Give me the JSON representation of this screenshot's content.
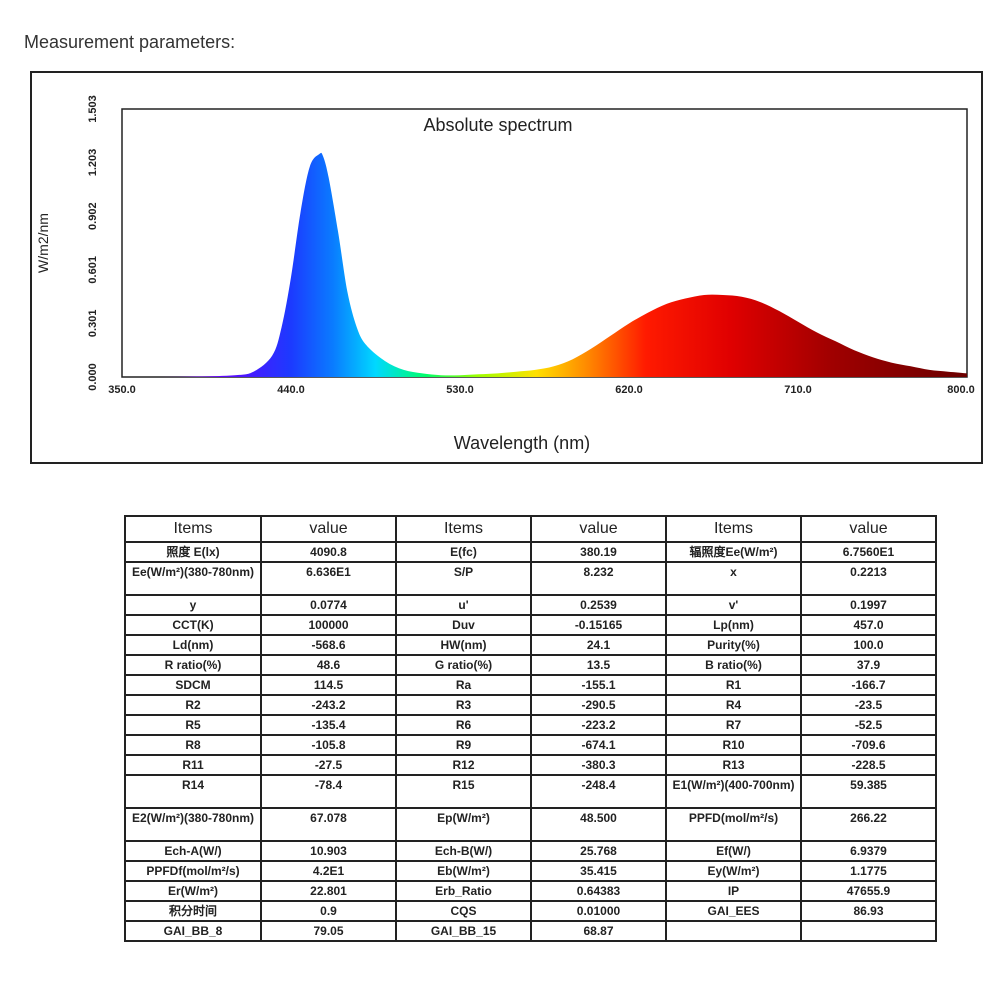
{
  "heading": "Measurement parameters:",
  "chart_data": {
    "type": "area",
    "title": "Absolute spectrum",
    "xlabel": "Wavelength (nm)",
    "ylabel": "W/m2/nm",
    "xlim": [
      350.0,
      800.0
    ],
    "ylim": [
      0.0,
      1.503
    ],
    "xticks": [
      "350.0",
      "440.0",
      "530.0",
      "620.0",
      "710.0",
      "800.0"
    ],
    "yticks": [
      "0.000",
      "0.301",
      "0.601",
      "0.902",
      "1.203",
      "1.503"
    ],
    "grid": false,
    "legend": "none",
    "x": [
      350,
      370,
      390,
      410,
      420,
      430,
      435,
      440,
      445,
      450,
      455,
      457,
      460,
      465,
      470,
      475,
      480,
      490,
      500,
      510,
      520,
      530,
      540,
      550,
      560,
      570,
      580,
      590,
      600,
      610,
      620,
      630,
      640,
      650,
      660,
      670,
      680,
      690,
      700,
      710,
      720,
      730,
      740,
      750,
      760,
      770,
      780,
      790,
      800
    ],
    "y": [
      0.0,
      0.0,
      0.003,
      0.01,
      0.03,
      0.12,
      0.28,
      0.56,
      0.92,
      1.18,
      1.25,
      1.24,
      1.12,
      0.82,
      0.48,
      0.28,
      0.18,
      0.09,
      0.04,
      0.02,
      0.01,
      0.01,
      0.015,
      0.02,
      0.03,
      0.04,
      0.06,
      0.1,
      0.16,
      0.23,
      0.3,
      0.36,
      0.41,
      0.44,
      0.46,
      0.46,
      0.45,
      0.42,
      0.37,
      0.31,
      0.25,
      0.2,
      0.15,
      0.11,
      0.08,
      0.06,
      0.04,
      0.03,
      0.02
    ]
  },
  "table": {
    "rows": [
      [
        {
          "t": "Items"
        },
        {
          "t": "value"
        },
        {
          "t": "Items"
        },
        {
          "t": "value"
        },
        {
          "t": "Items"
        },
        {
          "t": "value"
        }
      ],
      [
        {
          "t": "照度 E(lx)"
        },
        {
          "t": "4090.8"
        },
        {
          "t": "E(fc)"
        },
        {
          "t": "380.19"
        },
        {
          "t": "辐照度Ee(W/m²)"
        },
        {
          "t": "6.7560E1"
        }
      ],
      [
        {
          "t": "Ee(W/m²)(380-780nm)"
        },
        {
          "t": "6.636E1"
        },
        {
          "t": "S/P"
        },
        {
          "t": "8.232"
        },
        {
          "t": "x"
        },
        {
          "t": "0.2213"
        }
      ],
      [
        {
          "t": "y"
        },
        {
          "t": "0.0774"
        },
        {
          "t": "u'"
        },
        {
          "t": "0.2539"
        },
        {
          "t": "v'"
        },
        {
          "t": "0.1997"
        }
      ],
      [
        {
          "t": "CCT(K)"
        },
        {
          "t": "100000"
        },
        {
          "t": "Duv"
        },
        {
          "t": "-0.15165"
        },
        {
          "t": "Lp(nm)"
        },
        {
          "t": "457.0"
        }
      ],
      [
        {
          "t": "Ld(nm)"
        },
        {
          "t": "-568.6"
        },
        {
          "t": "HW(nm)"
        },
        {
          "t": "24.1"
        },
        {
          "t": "Purity(%)"
        },
        {
          "t": "100.0"
        }
      ],
      [
        {
          "t": "R ratio(%)"
        },
        {
          "t": "48.6"
        },
        {
          "t": "G ratio(%)"
        },
        {
          "t": "13.5"
        },
        {
          "t": "B ratio(%)"
        },
        {
          "t": "37.9"
        }
      ],
      [
        {
          "t": "SDCM"
        },
        {
          "t": "114.5"
        },
        {
          "t": "Ra"
        },
        {
          "t": "-155.1"
        },
        {
          "t": "R1"
        },
        {
          "t": "-166.7"
        }
      ],
      [
        {
          "t": "R2"
        },
        {
          "t": "-243.2"
        },
        {
          "t": "R3"
        },
        {
          "t": "-290.5"
        },
        {
          "t": "R4"
        },
        {
          "t": "-23.5"
        }
      ],
      [
        {
          "t": "R5"
        },
        {
          "t": "-135.4"
        },
        {
          "t": "R6"
        },
        {
          "t": "-223.2"
        },
        {
          "t": "R7"
        },
        {
          "t": "-52.5"
        }
      ],
      [
        {
          "t": "R8"
        },
        {
          "t": "-105.8"
        },
        {
          "t": "R9"
        },
        {
          "t": "-674.1"
        },
        {
          "t": "R10"
        },
        {
          "t": "-709.6"
        }
      ],
      [
        {
          "t": "R11"
        },
        {
          "t": "-27.5"
        },
        {
          "t": "R12"
        },
        {
          "t": "-380.3"
        },
        {
          "t": "R13"
        },
        {
          "t": "-228.5"
        }
      ],
      [
        {
          "t": "R14"
        },
        {
          "t": "-78.4"
        },
        {
          "t": "R15"
        },
        {
          "t": "-248.4"
        },
        {
          "t": "E1(W/m²)(400-700nm)"
        },
        {
          "t": "59.385"
        }
      ],
      [
        {
          "t": "E2(W/m²)(380-780nm)"
        },
        {
          "t": "67.078"
        },
        {
          "t": "Ep(W/m²)"
        },
        {
          "t": "48.500"
        },
        {
          "t": "PPFD(mol/m²/s)"
        },
        {
          "t": "266.22"
        }
      ],
      [
        {
          "t": "Ech-A(W/)"
        },
        {
          "t": "10.903"
        },
        {
          "t": "Ech-B(W/)"
        },
        {
          "t": "25.768"
        },
        {
          "t": "Ef(W/)"
        },
        {
          "t": "6.9379"
        }
      ],
      [
        {
          "t": "PPFDf(mol/m²/s)"
        },
        {
          "t": "4.2E1"
        },
        {
          "t": "Eb(W/m²)"
        },
        {
          "t": "35.415"
        },
        {
          "t": "Ey(W/m²)"
        },
        {
          "t": "1.1775"
        }
      ],
      [
        {
          "t": "Er(W/m²)"
        },
        {
          "t": "22.801"
        },
        {
          "t": "Erb_Ratio"
        },
        {
          "t": "0.64383"
        },
        {
          "t": "IP"
        },
        {
          "t": "47655.9"
        }
      ],
      [
        {
          "t": "积分时间"
        },
        {
          "t": "0.9"
        },
        {
          "t": "CQS"
        },
        {
          "t": "0.01000"
        },
        {
          "t": "GAI_EES"
        },
        {
          "t": "86.93"
        }
      ],
      [
        {
          "t": "GAI_BB_8"
        },
        {
          "t": "79.05"
        },
        {
          "t": "GAI_BB_15"
        },
        {
          "t": "68.87"
        },
        {
          "t": ""
        },
        {
          "t": ""
        }
      ]
    ]
  }
}
